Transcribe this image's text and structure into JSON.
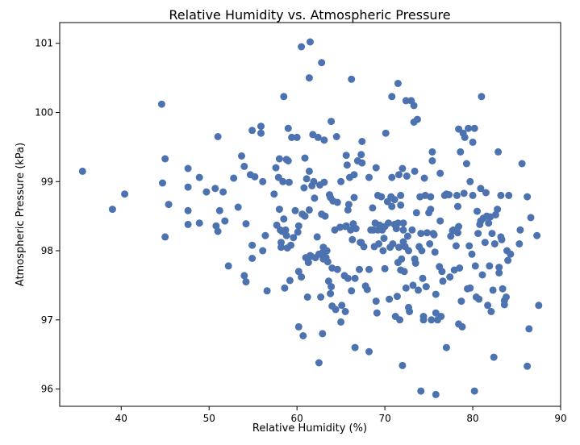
{
  "chart_data": {
    "type": "scatter",
    "title": "Relative Humidity vs. Atmospheric Pressure",
    "xlabel": "Relative Humidity (%)",
    "ylabel": "Atmospheric Pressure (kPa)",
    "xlim": [
      33,
      90
    ],
    "ylim": [
      95.75,
      101.3
    ],
    "xticks": [
      40,
      50,
      60,
      70,
      80,
      90
    ],
    "yticks": [
      96,
      97,
      98,
      99,
      100,
      101
    ],
    "grid": false,
    "marker_color": "#4c72b0",
    "points": [
      [
        35.6,
        99.15
      ],
      [
        39.0,
        98.6
      ],
      [
        40.4,
        98.82
      ],
      [
        44.6,
        100.12
      ],
      [
        44.7,
        98.98
      ],
      [
        45.0,
        99.33
      ],
      [
        45.0,
        98.2
      ],
      [
        45.4,
        98.67
      ],
      [
        47.6,
        99.19
      ],
      [
        47.6,
        98.92
      ],
      [
        47.6,
        98.58
      ],
      [
        47.6,
        98.38
      ],
      [
        48.9,
        99.06
      ],
      [
        48.9,
        98.4
      ],
      [
        49.7,
        98.85
      ],
      [
        50.7,
        98.9
      ],
      [
        50.8,
        98.36
      ],
      [
        51.0,
        99.65
      ],
      [
        51.0,
        98.28
      ],
      [
        51.2,
        98.58
      ],
      [
        51.6,
        98.85
      ],
      [
        51.8,
        98.43
      ],
      [
        52.2,
        97.78
      ],
      [
        52.8,
        99.05
      ],
      [
        53.3,
        98.63
      ],
      [
        53.7,
        99.37
      ],
      [
        54.0,
        99.22
      ],
      [
        54.0,
        97.64
      ],
      [
        54.2,
        97.55
      ],
      [
        54.2,
        98.39
      ],
      [
        54.7,
        99.1
      ],
      [
        54.9,
        98.08
      ],
      [
        54.9,
        97.89
      ],
      [
        54.9,
        99.74
      ],
      [
        55.2,
        99.07
      ],
      [
        55.9,
        99.8
      ],
      [
        55.9,
        99.7
      ],
      [
        56.1,
        98.0
      ],
      [
        56.1,
        99.0
      ],
      [
        56.4,
        98.22
      ],
      [
        56.6,
        97.42
      ],
      [
        57.4,
        98.82
      ],
      [
        57.6,
        99.2
      ],
      [
        57.7,
        98.37
      ],
      [
        57.9,
        99.06
      ],
      [
        58.0,
        99.33
      ],
      [
        58.0,
        98.6
      ],
      [
        58.1,
        98.3
      ],
      [
        58.2,
        98.05
      ],
      [
        58.2,
        98.12
      ],
      [
        58.3,
        98.28
      ],
      [
        58.4,
        99.0
      ],
      [
        58.5,
        100.23
      ],
      [
        58.5,
        98.46
      ],
      [
        58.6,
        97.46
      ],
      [
        58.7,
        98.3
      ],
      [
        58.8,
        98.22
      ],
      [
        58.8,
        99.32
      ],
      [
        58.9,
        98.04
      ],
      [
        59.0,
        99.3
      ],
      [
        59.0,
        99.77
      ],
      [
        59.1,
        98.99
      ],
      [
        59.2,
        97.57
      ],
      [
        59.3,
        98.08
      ],
      [
        59.4,
        99.64
      ],
      [
        59.6,
        98.19
      ],
      [
        59.8,
        98.58
      ],
      [
        60.0,
        99.64
      ],
      [
        60.1,
        98.27
      ],
      [
        60.2,
        97.7
      ],
      [
        60.2,
        98.36
      ],
      [
        60.2,
        96.9
      ],
      [
        60.5,
        100.95
      ],
      [
        60.5,
        97.62
      ],
      [
        60.6,
        98.53
      ],
      [
        60.7,
        96.77
      ],
      [
        60.8,
        98.91
      ],
      [
        60.9,
        99.34
      ],
      [
        60.9,
        98.5
      ],
      [
        61.0,
        97.9
      ],
      [
        61.1,
        99.04
      ],
      [
        61.2,
        97.33
      ],
      [
        61.3,
        97.83
      ],
      [
        61.4,
        100.5
      ],
      [
        61.4,
        99.15
      ],
      [
        61.4,
        98.59
      ],
      [
        61.5,
        101.02
      ],
      [
        61.5,
        97.93
      ],
      [
        61.6,
        97.92
      ],
      [
        61.7,
        98.94
      ],
      [
        61.8,
        99.68
      ],
      [
        61.9,
        99.0
      ],
      [
        62.0,
        98.76
      ],
      [
        62.1,
        97.9
      ],
      [
        62.3,
        98.2
      ],
      [
        62.4,
        99.64
      ],
      [
        62.5,
        96.38
      ],
      [
        62.5,
        97.95
      ],
      [
        62.6,
        98.95
      ],
      [
        62.7,
        97.33
      ],
      [
        62.8,
        100.72
      ],
      [
        62.8,
        98.53
      ],
      [
        62.9,
        97.97
      ],
      [
        62.9,
        96.8
      ],
      [
        63.0,
        98.05
      ],
      [
        63.0,
        97.88
      ],
      [
        63.1,
        99.6
      ],
      [
        63.1,
        98.99
      ],
      [
        63.2,
        98.5
      ],
      [
        63.3,
        97.9
      ],
      [
        63.4,
        98.0
      ],
      [
        63.5,
        97.84
      ],
      [
        63.6,
        97.56
      ],
      [
        63.7,
        98.81
      ],
      [
        63.8,
        97.38
      ],
      [
        63.8,
        98.77
      ],
      [
        63.9,
        99.87
      ],
      [
        63.9,
        97.48
      ],
      [
        64.0,
        97.2
      ],
      [
        64.0,
        97.75
      ],
      [
        64.1,
        98.72
      ],
      [
        64.3,
        98.3
      ],
      [
        64.4,
        97.15
      ],
      [
        64.5,
        99.65
      ],
      [
        64.6,
        97.73
      ],
      [
        64.6,
        98.7
      ],
      [
        64.9,
        98.34
      ],
      [
        65.0,
        99.0
      ],
      [
        65.0,
        96.97
      ],
      [
        65.1,
        97.21
      ],
      [
        65.4,
        97.64
      ],
      [
        65.5,
        97.12
      ],
      [
        65.5,
        98.35
      ],
      [
        65.6,
        98.36
      ],
      [
        65.6,
        99.38
      ],
      [
        65.7,
        99.24
      ],
      [
        65.8,
        98.59
      ],
      [
        65.8,
        97.6
      ],
      [
        65.9,
        98.67
      ],
      [
        66.0,
        99.06
      ],
      [
        66.1,
        98.3
      ],
      [
        66.2,
        100.48
      ],
      [
        66.2,
        97.42
      ],
      [
        66.3,
        98.16
      ],
      [
        66.4,
        98.39
      ],
      [
        66.5,
        99.1
      ],
      [
        66.5,
        98.77
      ],
      [
        66.6,
        97.6
      ],
      [
        66.6,
        96.6
      ],
      [
        66.7,
        98.32
      ],
      [
        66.9,
        99.3
      ],
      [
        67.1,
        97.73
      ],
      [
        67.2,
        98.12
      ],
      [
        67.3,
        99.39
      ],
      [
        67.3,
        98.12
      ],
      [
        67.4,
        99.58
      ],
      [
        67.4,
        99.27
      ],
      [
        67.6,
        98.06
      ],
      [
        67.8,
        97.49
      ],
      [
        68.0,
        97.44
      ],
      [
        68.2,
        99.06
      ],
      [
        68.2,
        97.73
      ],
      [
        68.2,
        96.54
      ],
      [
        68.4,
        98.3
      ],
      [
        68.6,
        98.62
      ],
      [
        68.7,
        98.3
      ],
      [
        68.8,
        98.06
      ],
      [
        68.9,
        98.4
      ],
      [
        69.0,
        99.2
      ],
      [
        69.0,
        97.27
      ],
      [
        69.1,
        97.1
      ],
      [
        69.2,
        98.3
      ],
      [
        69.2,
        98.8
      ],
      [
        69.3,
        98.1
      ],
      [
        69.4,
        98.37
      ],
      [
        69.6,
        98.78
      ],
      [
        69.7,
        98.3
      ],
      [
        69.8,
        98.0
      ],
      [
        69.9,
        98.18
      ],
      [
        70.0,
        97.74
      ],
      [
        70.0,
        98.35
      ],
      [
        70.1,
        99.7
      ],
      [
        70.3,
        98.71
      ],
      [
        70.4,
        98.4
      ],
      [
        70.5,
        97.3
      ],
      [
        70.6,
        98.05
      ],
      [
        70.7,
        98.78
      ],
      [
        70.8,
        98.64
      ],
      [
        70.8,
        99.06
      ],
      [
        70.8,
        100.23
      ],
      [
        70.9,
        98.1
      ],
      [
        71.1,
        98.74
      ],
      [
        71.1,
        98.38
      ],
      [
        71.2,
        97.05
      ],
      [
        71.3,
        98.32
      ],
      [
        71.4,
        97.34
      ],
      [
        71.5,
        97.83
      ],
      [
        71.5,
        100.42
      ],
      [
        71.5,
        98.4
      ],
      [
        71.6,
        98.05
      ],
      [
        71.6,
        99.1
      ],
      [
        71.7,
        97.0
      ],
      [
        71.8,
        97.72
      ],
      [
        71.8,
        98.66
      ],
      [
        71.8,
        98.8
      ],
      [
        71.9,
        97.88
      ],
      [
        72.0,
        99.19
      ],
      [
        72.0,
        96.34
      ],
      [
        72.1,
        98.13
      ],
      [
        72.1,
        98.3
      ],
      [
        72.1,
        98.4
      ],
      [
        72.2,
        97.7
      ],
      [
        72.3,
        98.06
      ],
      [
        72.4,
        100.17
      ],
      [
        72.4,
        97.46
      ],
      [
        72.5,
        99.08
      ],
      [
        72.6,
        98.21
      ],
      [
        72.7,
        98.0
      ],
      [
        72.7,
        97.18
      ],
      [
        72.8,
        97.12
      ],
      [
        73.0,
        100.17
      ],
      [
        73.1,
        98.3
      ],
      [
        73.2,
        97.5
      ],
      [
        73.3,
        100.1
      ],
      [
        73.3,
        99.86
      ],
      [
        73.4,
        97.88
      ],
      [
        73.4,
        99.15
      ],
      [
        73.5,
        97.82
      ],
      [
        73.6,
        98.55
      ],
      [
        73.7,
        99.9
      ],
      [
        73.8,
        97.43
      ],
      [
        73.9,
        98.06
      ],
      [
        74.0,
        98.78
      ],
      [
        74.1,
        98.25
      ],
      [
        74.1,
        95.97
      ],
      [
        74.2,
        98.0
      ],
      [
        74.3,
        97.6
      ],
      [
        74.4,
        97.05
      ],
      [
        74.4,
        97.0
      ],
      [
        74.5,
        99.05
      ],
      [
        74.6,
        98.8
      ],
      [
        74.7,
        97.48
      ],
      [
        74.8,
        98.26
      ],
      [
        75.0,
        98.55
      ],
      [
        75.1,
        98.1
      ],
      [
        75.2,
        98.78
      ],
      [
        75.2,
        98.6
      ],
      [
        75.3,
        97.0
      ],
      [
        75.4,
        99.43
      ],
      [
        75.4,
        99.3
      ],
      [
        75.5,
        98.25
      ],
      [
        75.6,
        98.23
      ],
      [
        75.7,
        97.98
      ],
      [
        75.8,
        97.1
      ],
      [
        75.8,
        97.37
      ],
      [
        75.8,
        95.92
      ],
      [
        76.0,
        97.0
      ],
      [
        76.2,
        97.77
      ],
      [
        76.3,
        98.43
      ],
      [
        76.3,
        99.12
      ],
      [
        76.4,
        97.05
      ],
      [
        76.5,
        97.7
      ],
      [
        76.6,
        97.56
      ],
      [
        76.8,
        98.8
      ],
      [
        77.0,
        98.82
      ],
      [
        77.0,
        96.6
      ],
      [
        77.3,
        98.81
      ],
      [
        77.4,
        97.62
      ],
      [
        77.5,
        98.21
      ],
      [
        77.7,
        98.29
      ],
      [
        77.8,
        98.3
      ],
      [
        77.9,
        97.72
      ],
      [
        78.1,
        98.07
      ],
      [
        78.2,
        98.8
      ],
      [
        78.3,
        98.64
      ],
      [
        78.3,
        98.26
      ],
      [
        78.4,
        99.76
      ],
      [
        78.4,
        98.35
      ],
      [
        78.4,
        96.94
      ],
      [
        78.5,
        97.75
      ],
      [
        78.6,
        99.43
      ],
      [
        78.7,
        97.27
      ],
      [
        78.8,
        96.9
      ],
      [
        78.9,
        99.7
      ],
      [
        79.0,
        98.83
      ],
      [
        79.1,
        99.64
      ],
      [
        79.3,
        99.26
      ],
      [
        79.4,
        97.45
      ],
      [
        79.5,
        99.77
      ],
      [
        79.6,
        98.07
      ],
      [
        79.7,
        99.0
      ],
      [
        79.7,
        97.46
      ],
      [
        79.9,
        97.95
      ],
      [
        80.0,
        99.57
      ],
      [
        80.0,
        98.8
      ],
      [
        80.2,
        99.77
      ],
      [
        80.2,
        95.97
      ],
      [
        80.3,
        97.78
      ],
      [
        80.4,
        97.33
      ],
      [
        80.5,
        98.57
      ],
      [
        80.6,
        98.25
      ],
      [
        80.7,
        97.3
      ],
      [
        80.8,
        98.38
      ],
      [
        80.9,
        98.9
      ],
      [
        80.9,
        98.43
      ],
      [
        81.0,
        100.23
      ],
      [
        81.1,
        97.65
      ],
      [
        81.2,
        98.47
      ],
      [
        81.4,
        98.12
      ],
      [
        81.5,
        98.84
      ],
      [
        81.6,
        98.5
      ],
      [
        81.7,
        97.21
      ],
      [
        81.8,
        98.4
      ],
      [
        81.9,
        97.78
      ],
      [
        82.0,
        98.49
      ],
      [
        82.1,
        97.12
      ],
      [
        82.2,
        98.25
      ],
      [
        82.3,
        97.43
      ],
      [
        82.4,
        96.46
      ],
      [
        82.5,
        98.1
      ],
      [
        82.6,
        98.52
      ],
      [
        82.8,
        98.6
      ],
      [
        82.9,
        99.43
      ],
      [
        83.0,
        97.76
      ],
      [
        83.0,
        97.68
      ],
      [
        83.2,
        98.2
      ],
      [
        83.2,
        98.8
      ],
      [
        83.3,
        98.16
      ],
      [
        83.4,
        97.45
      ],
      [
        83.6,
        97.28
      ],
      [
        83.6,
        97.22
      ],
      [
        83.8,
        97.33
      ],
      [
        83.9,
        98.0
      ],
      [
        84.0,
        97.86
      ],
      [
        84.1,
        98.8
      ],
      [
        84.3,
        97.95
      ],
      [
        85.3,
        98.1
      ],
      [
        85.4,
        98.3
      ],
      [
        85.6,
        99.26
      ],
      [
        86.2,
        96.33
      ],
      [
        86.2,
        98.78
      ],
      [
        86.6,
        98.48
      ],
      [
        87.3,
        98.22
      ],
      [
        87.5,
        97.21
      ],
      [
        86.4,
        96.87
      ]
    ]
  }
}
